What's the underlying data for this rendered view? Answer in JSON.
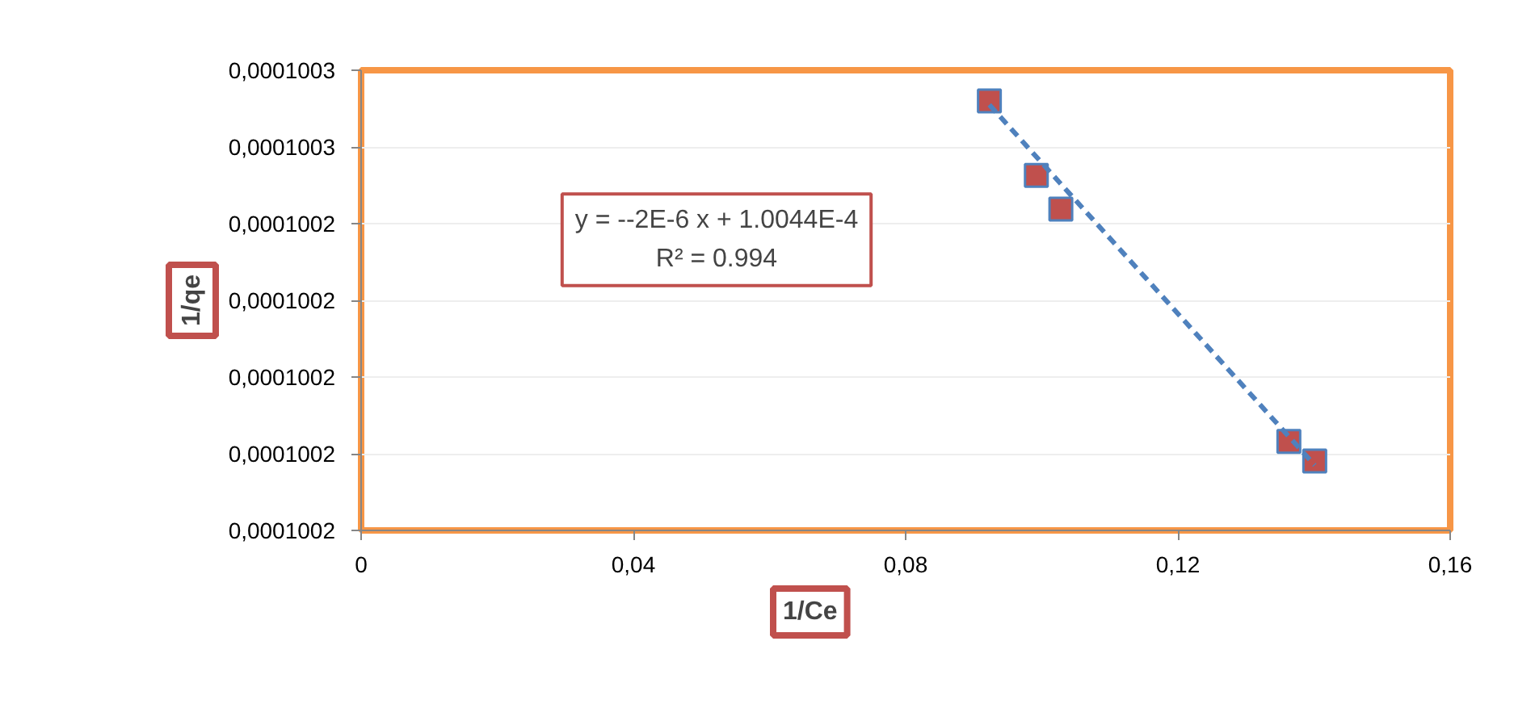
{
  "chart_data": {
    "type": "scatter",
    "xlabel": "1/Ce",
    "ylabel": "1/qe",
    "annotations": [
      "y = --2E-6 x + 1.0044E-4\nR² = 0.994"
    ],
    "series": [
      {
        "color": "#c0504d",
        "x": [
          0.0923,
          0.0992,
          0.1028,
          0.1363,
          0.1401
        ],
        "values": [
          0.000100272,
          0.0001002526,
          0.0001002438,
          0.0001001832,
          0.0001001781
        ]
      },
      {
        "type": "line",
        "color": "#4f81bd",
        "line_style": "dashed",
        "marker": "none",
        "x": [
          0.0923,
          0.1401
        ],
        "values": [
          0.000100271,
          0.000100177
        ]
      }
    ],
    "marker": "square",
    "xlim": [
      0,
      0.16
    ],
    "xticks": [
      0,
      {
        "value": 0.04,
        "label": "0,04"
      },
      {
        "value": 0.08,
        "label": "0,08"
      },
      {
        "value": 0.12,
        "label": "0,12"
      },
      {
        "value": 0.16,
        "label": "0,16"
      }
    ],
    "ylim": [
      0.00010016,
      0.00010028
    ],
    "yticks": [
      {
        "value": 0.00010016,
        "label": "0,0001002"
      },
      {
        "value": 0.00010018,
        "label": "0,0001002"
      },
      {
        "value": 0.0001002,
        "label": "0,0001002"
      },
      {
        "value": 0.00010022,
        "label": "0,0001002"
      },
      {
        "value": 0.00010024,
        "label": "0,0001002"
      },
      {
        "value": 0.00010026,
        "label": "0,0001003"
      },
      {
        "value": 0.00010028,
        "label": "0,0001003"
      }
    ],
    "grid": "y"
  }
}
